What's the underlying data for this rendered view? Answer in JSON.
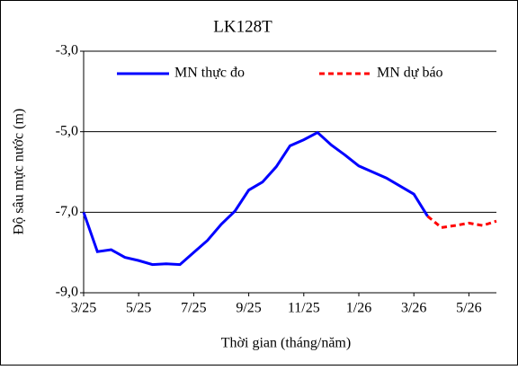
{
  "chart_data": {
    "type": "line",
    "title": "LK128T",
    "x_label": "Thời gian  (tháng/năm)",
    "y_label": "Độ sâu mực nước (m)",
    "categories": [
      "3/25",
      null,
      null,
      null,
      "5/25",
      null,
      null,
      null,
      "7/25",
      null,
      null,
      null,
      "9/25",
      null,
      null,
      null,
      "11/25",
      null,
      null,
      null,
      "1/26",
      null,
      null,
      null,
      "3/26",
      null,
      null,
      null,
      "5/26",
      null,
      null
    ],
    "series": [
      {
        "name": "MN thực đo",
        "color": "#0000ff",
        "dash": false,
        "values": [
          -7.0,
          -7.98,
          -7.93,
          -8.12,
          -8.2,
          -8.3,
          -8.28,
          -8.3,
          -8.0,
          -7.7,
          -7.3,
          -6.97,
          -6.45,
          -6.25,
          -5.87,
          -5.35,
          -5.2,
          -5.02,
          -5.33,
          -5.58,
          -5.85,
          -6.0,
          -6.15,
          -6.35,
          -6.55,
          -7.1,
          null,
          null,
          null,
          null,
          null
        ]
      },
      {
        "name": "MN dự báo",
        "color": "#ff0000",
        "dash": true,
        "values": [
          null,
          null,
          null,
          null,
          null,
          null,
          null,
          null,
          null,
          null,
          null,
          null,
          null,
          null,
          null,
          null,
          null,
          null,
          null,
          null,
          null,
          null,
          null,
          null,
          null,
          -7.1,
          -7.38,
          -7.33,
          -7.27,
          -7.33,
          -7.22
        ]
      }
    ],
    "ylim": [
      -9,
      -3
    ],
    "yticks": [
      {
        "value": -9,
        "label": "-9,0"
      },
      {
        "value": -7,
        "label": "-7,0"
      },
      {
        "value": -5,
        "label": "-5,0"
      },
      {
        "value": -3,
        "label": "-3,0"
      }
    ],
    "grid": true,
    "legend": "top"
  }
}
